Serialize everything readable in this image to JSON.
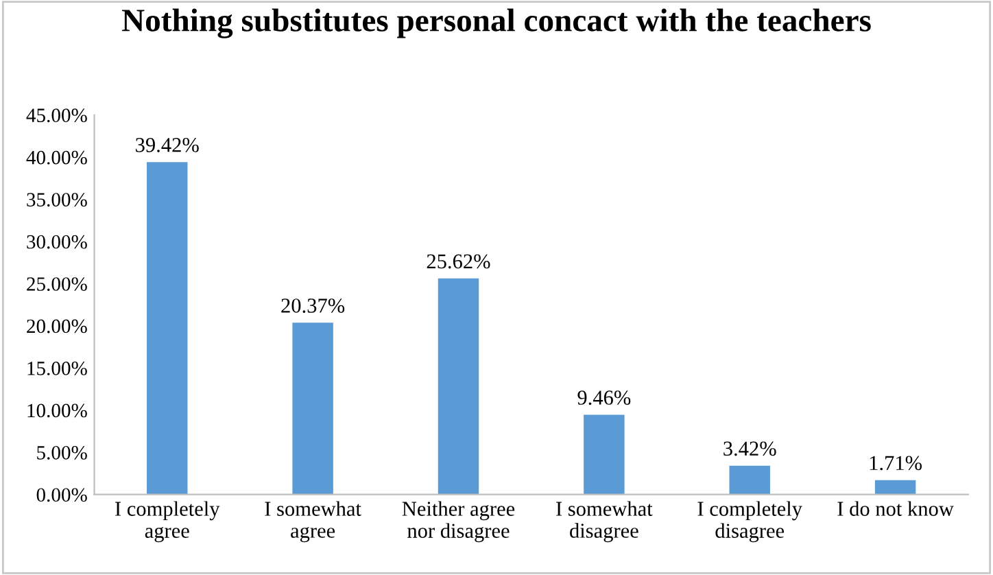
{
  "chart_data": {
    "type": "bar",
    "title": "Nothing substitutes personal concact with the teachers",
    "categories": [
      "I completely\nagree",
      "I somewhat\nagree",
      "Neither agree\nnor disagree",
      "I somewhat\ndisagree",
      "I completely\ndisagree",
      "I do not know"
    ],
    "values": [
      39.42,
      20.37,
      25.62,
      9.46,
      3.42,
      1.71
    ],
    "value_labels": [
      "39.42%",
      "20.37%",
      "25.62%",
      "9.46%",
      "3.42%",
      "1.71%"
    ],
    "color": "#5b9bd5",
    "ylim": [
      0,
      45
    ],
    "yticks": [
      {
        "value": 0,
        "label": "0.00%"
      },
      {
        "value": 5,
        "label": "5.00%"
      },
      {
        "value": 10,
        "label": "10.00%"
      },
      {
        "value": 15,
        "label": "15.00%"
      },
      {
        "value": 20,
        "label": "20.00%"
      },
      {
        "value": 25,
        "label": "25.00%"
      },
      {
        "value": 30,
        "label": "30.00%"
      },
      {
        "value": 35,
        "label": "35.00%"
      },
      {
        "value": 40,
        "label": "40.00%"
      },
      {
        "value": 45,
        "label": "45.00%"
      }
    ],
    "grid": false,
    "legend": false
  }
}
